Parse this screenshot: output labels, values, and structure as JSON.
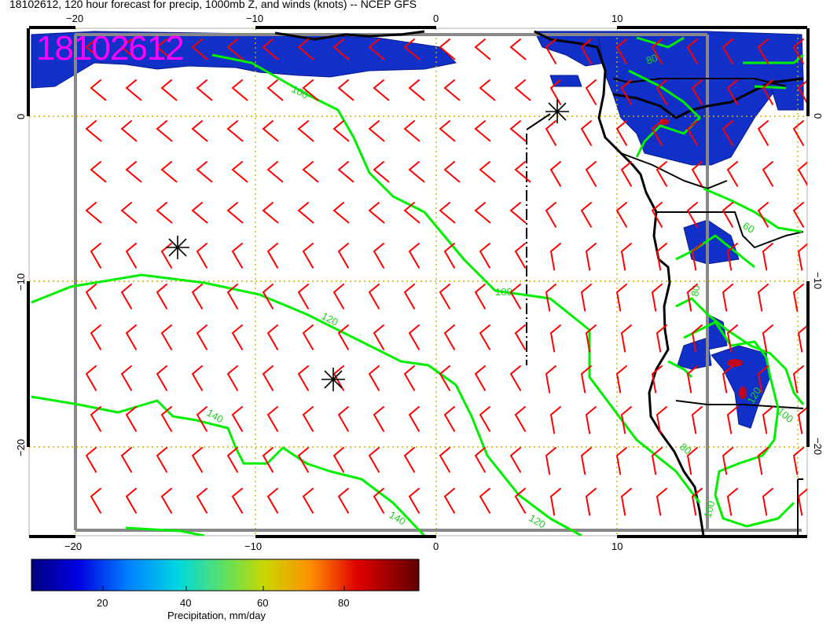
{
  "title": "18102612, 120 hour forecast for precip, 1000mb Z, and winds (knots) -- NCEP GFS",
  "stamp": "18102612",
  "axes": {
    "top_ticks": [
      "−20",
      "−10",
      "0",
      "10"
    ],
    "bottom_ticks": [
      "−20",
      "−10",
      "0",
      "10"
    ],
    "left_ticks": [
      "0",
      "−10",
      "−20"
    ],
    "right_ticks": [
      "0",
      "−10",
      "−20"
    ]
  },
  "contour_labels": [
    "100",
    "120",
    "140",
    "140",
    "120",
    "100",
    "120",
    "80",
    "60",
    "80",
    "100",
    "100",
    "80"
  ],
  "colorbar": {
    "ticks": [
      "20",
      "40",
      "60",
      "80"
    ],
    "label": "Precipitation, mm/day"
  },
  "colors": {
    "wind_barbs": "#ff0000",
    "contours": "#00ff00",
    "precip_low": "#0000aa",
    "stamp": "#ff00ff",
    "grid": "#c8b400"
  },
  "icons": [
    "asterisk-marker",
    "asterisk-marker",
    "asterisk-marker"
  ]
}
